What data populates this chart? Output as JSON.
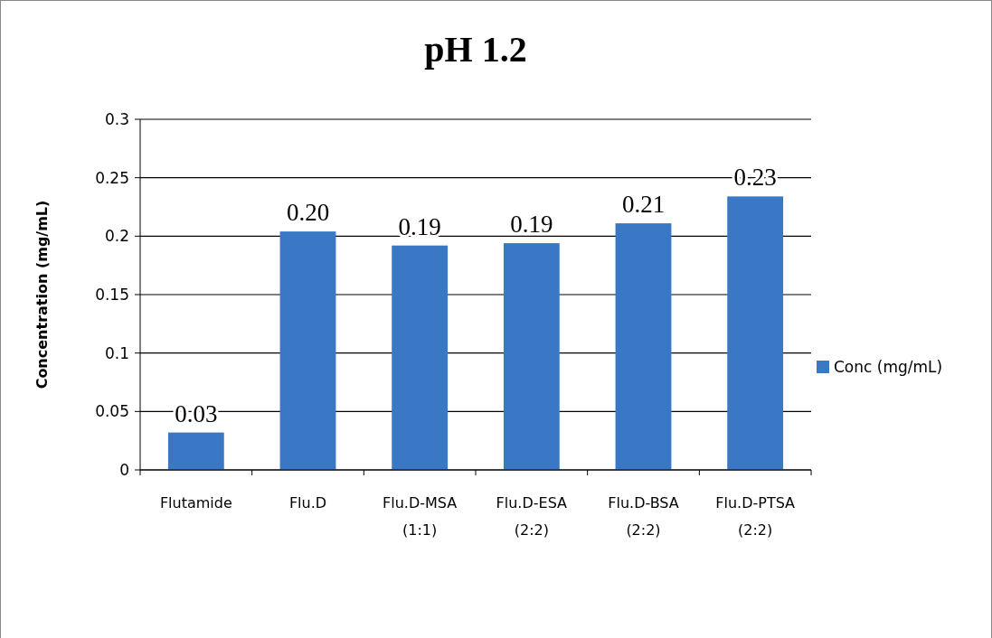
{
  "chart_data": {
    "type": "bar",
    "title": "pH 1.2",
    "ylabel": "Concentration (mg/mL)",
    "categories": [
      "Flutamide",
      "Flu.D",
      "Flu.D-MSA (1:1)",
      "Flu.D-ESA (2:2)",
      "Flu.D-BSA (2:2)",
      "Flu.D-PTSA (2:2)"
    ],
    "series": [
      {
        "name": "Conc (mg/mL)",
        "color": "#3a78c6",
        "values": [
          0.032,
          0.204,
          0.192,
          0.194,
          0.211,
          0.234
        ],
        "value_labels": [
          "0.03",
          "0.20",
          "0.19",
          "0.19",
          "0.21",
          "0.23"
        ]
      }
    ],
    "ylim": [
      0,
      0.3
    ],
    "yticks": [
      0,
      {
        "value": 0.05,
        "label": "0.05"
      },
      {
        "value": 0.1,
        "label": "0.1"
      },
      {
        "value": 0.15,
        "label": "0.15"
      },
      {
        "value": 0.2,
        "label": "0.2"
      },
      {
        "value": 0.25,
        "label": "0.25"
      },
      {
        "value": 0.3,
        "label": "0.3"
      }
    ],
    "grid": "y",
    "legend": "right"
  }
}
